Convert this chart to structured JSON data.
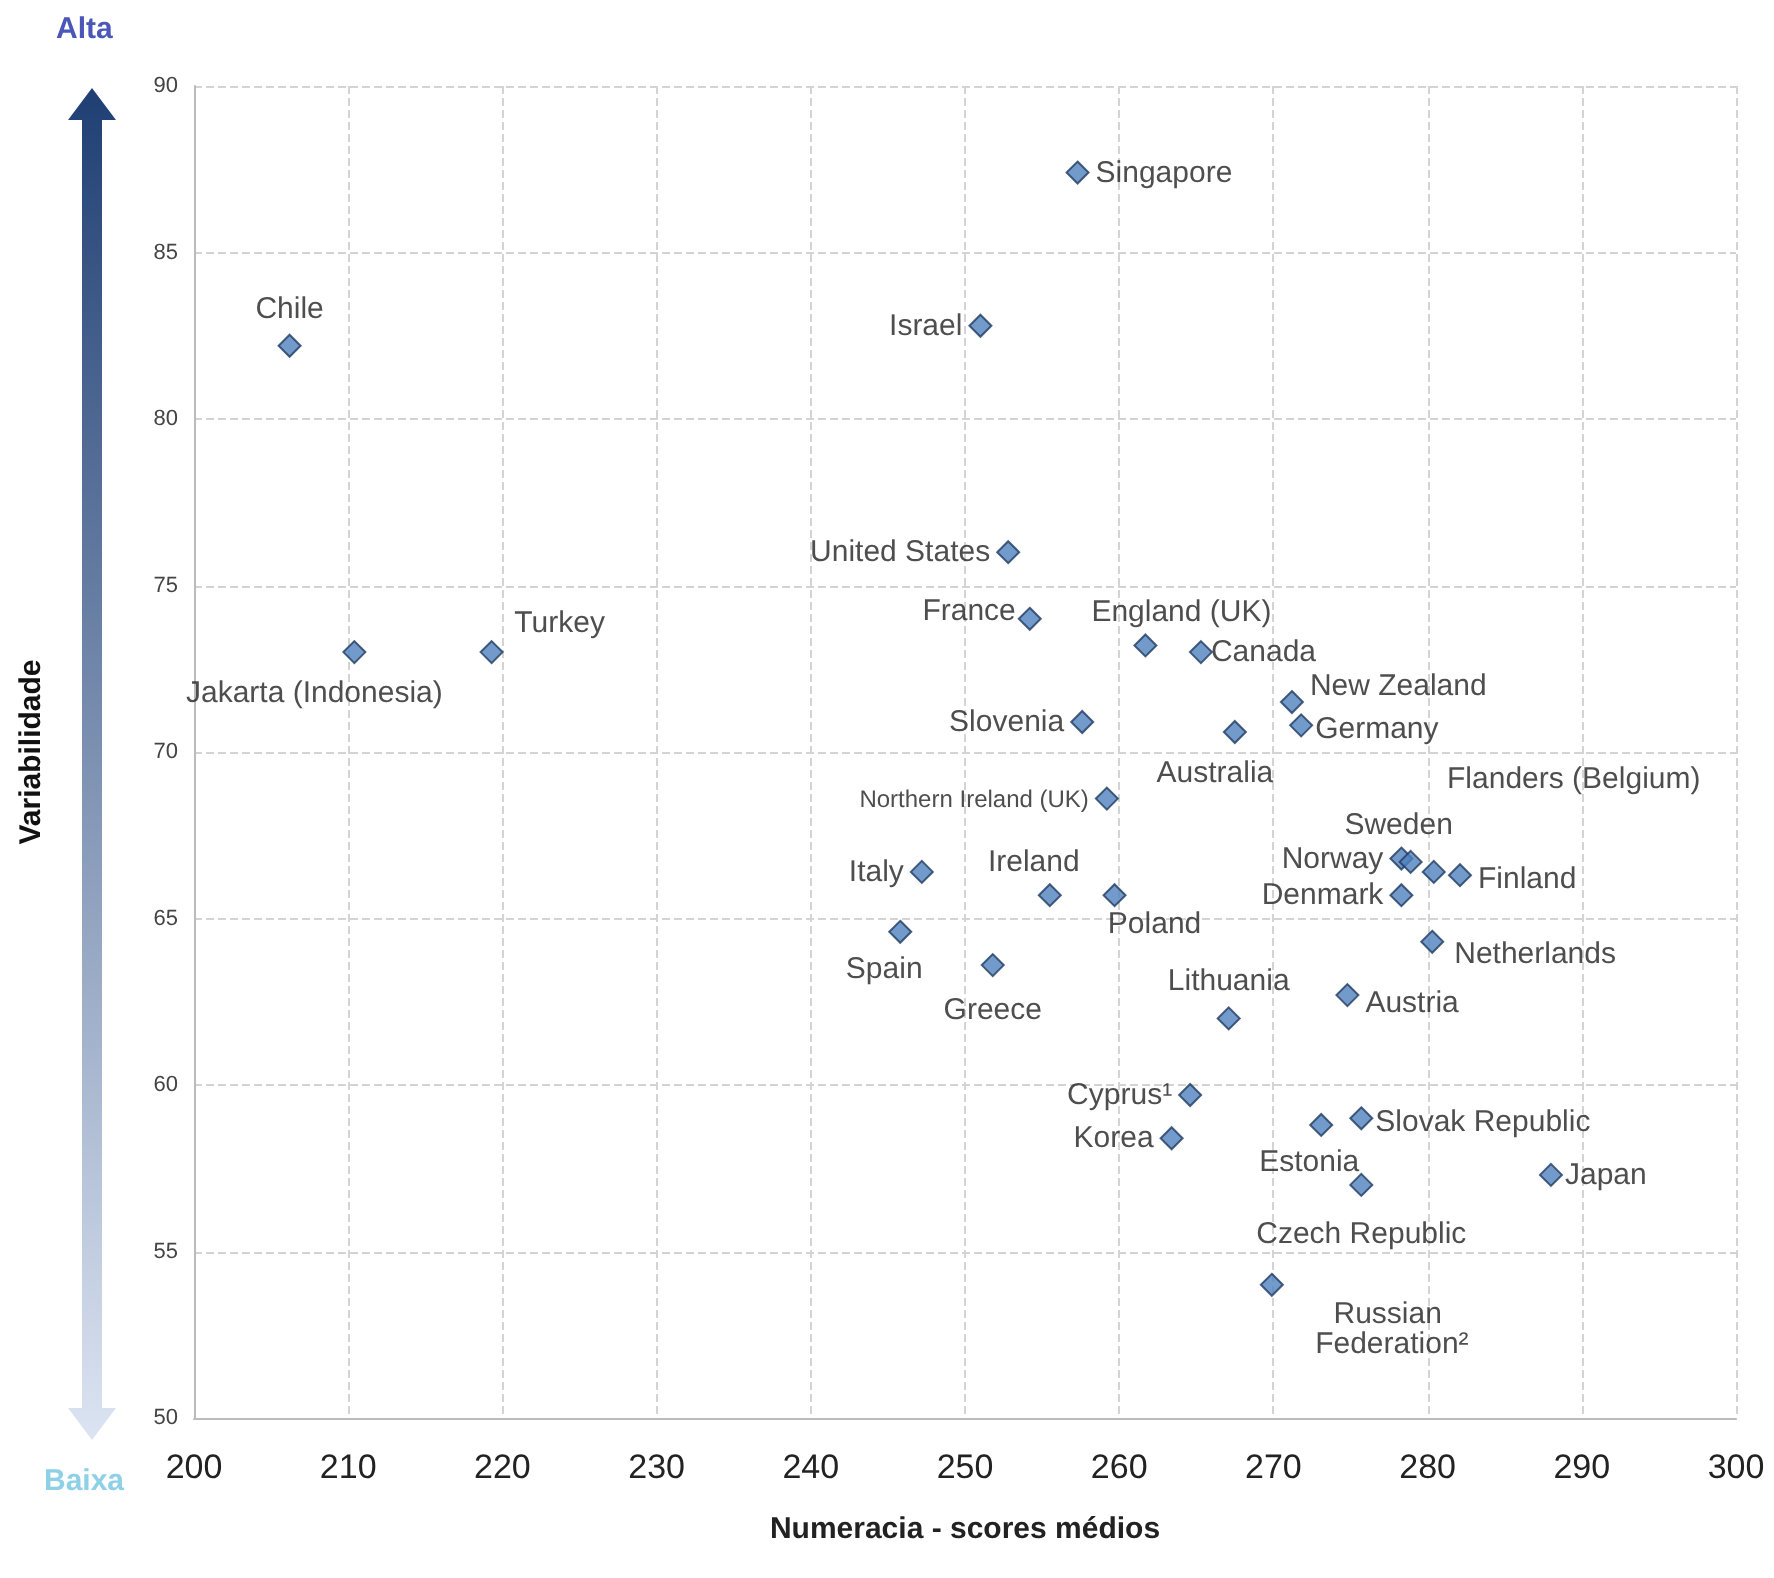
{
  "chart_data": {
    "type": "scatter",
    "xlabel": "Numeracia - scores médios",
    "ylabel": "Variabilidade",
    "xlim": [
      200,
      300
    ],
    "xticks": [
      200,
      210,
      220,
      230,
      240,
      250,
      260,
      270,
      280,
      290,
      300
    ],
    "ylim": [
      50,
      90
    ],
    "yticks": [
      50,
      55,
      60,
      65,
      70,
      75,
      80,
      85,
      90
    ],
    "grid": true,
    "marker": "diamond",
    "series": [
      {
        "color": "#4f81bd",
        "x": [
          257.3,
          206.2,
          251.0,
          210.4,
          219.3,
          252.8,
          254.2,
          261.7,
          265.3,
          257.6,
          267.5,
          271.2,
          271.8,
          259.2,
          247.2,
          255.5,
          259.7,
          278.3,
          278.9,
          280.4,
          282.1,
          278.3,
          245.8,
          280.3,
          251.8,
          274.8,
          267.1,
          264.6,
          263.4,
          273.1,
          275.7,
          288.0,
          275.7,
          269.9
        ],
        "values": [
          87.4,
          82.2,
          82.8,
          73.0,
          73.0,
          76.0,
          74.0,
          73.2,
          73.0,
          70.9,
          70.6,
          71.5,
          70.8,
          68.6,
          66.4,
          65.7,
          65.7,
          66.8,
          66.7,
          66.4,
          66.3,
          65.7,
          64.6,
          64.3,
          63.6,
          62.7,
          62.0,
          59.7,
          58.4,
          58.8,
          59.0,
          57.3,
          57.0,
          54.0
        ]
      }
    ],
    "annotations": [
      {
        "text": "Singapore",
        "x": 257.3,
        "y": 87.4
      },
      {
        "text": "Chile",
        "x": 206.2,
        "y": 82.2
      },
      {
        "text": "Israel",
        "x": 251.0,
        "y": 82.8
      },
      {
        "text": "Jakarta (Indonesia)",
        "x": 210.4,
        "y": 73.0
      },
      {
        "text": "Turkey",
        "x": 219.3,
        "y": 73.0
      },
      {
        "text": "United States",
        "x": 252.8,
        "y": 76.0
      },
      {
        "text": "France",
        "x": 254.2,
        "y": 74.0
      },
      {
        "text": "England (UK)",
        "x": 261.7,
        "y": 73.2
      },
      {
        "text": "Canada",
        "x": 265.3,
        "y": 73.0
      },
      {
        "text": "Slovenia",
        "x": 257.6,
        "y": 70.9
      },
      {
        "text": "Australia",
        "x": 267.5,
        "y": 70.6
      },
      {
        "text": "New Zealand",
        "x": 271.2,
        "y": 71.5
      },
      {
        "text": "Germany",
        "x": 271.8,
        "y": 70.8
      },
      {
        "text": "Northern Ireland (UK)",
        "x": 259.2,
        "y": 68.6
      },
      {
        "text": "Italy",
        "x": 247.2,
        "y": 66.4
      },
      {
        "text": "Ireland",
        "x": 255.5,
        "y": 65.7
      },
      {
        "text": "Poland",
        "x": 259.7,
        "y": 65.7
      },
      {
        "text": "Norway",
        "x": 278.3,
        "y": 66.8
      },
      {
        "text": "Sweden",
        "x": 278.9,
        "y": 66.7
      },
      {
        "text": "Flanders (Belgium)",
        "x": 280.4,
        "y": 66.4
      },
      {
        "text": "Finland",
        "x": 282.1,
        "y": 66.3
      },
      {
        "text": "Denmark",
        "x": 278.3,
        "y": 65.7
      },
      {
        "text": "Spain",
        "x": 245.8,
        "y": 64.6
      },
      {
        "text": "Netherlands",
        "x": 280.3,
        "y": 64.3
      },
      {
        "text": "Greece",
        "x": 251.8,
        "y": 63.6
      },
      {
        "text": "Austria",
        "x": 274.8,
        "y": 62.7
      },
      {
        "text": "Lithuania",
        "x": 267.1,
        "y": 62.0
      },
      {
        "text": "Cyprus¹",
        "x": 264.6,
        "y": 59.7
      },
      {
        "text": "Korea",
        "x": 263.4,
        "y": 58.4
      },
      {
        "text": "Estonia",
        "x": 273.1,
        "y": 58.8
      },
      {
        "text": "Slovak Republic",
        "x": 275.7,
        "y": 59.0
      },
      {
        "text": "Japan",
        "x": 288.0,
        "y": 57.3
      },
      {
        "text": "Czech Republic",
        "x": 275.7,
        "y": 57.0
      },
      {
        "text": "Russian Federation²",
        "x": 269.9,
        "y": 54.0
      },
      "Alta",
      "Baixa"
    ]
  }
}
